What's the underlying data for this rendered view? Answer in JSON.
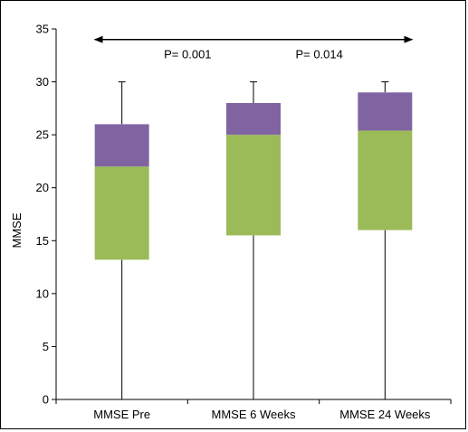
{
  "chart_data": {
    "type": "box",
    "ylabel": "MMSE",
    "ylim": [
      0,
      35
    ],
    "yticks": [
      0,
      5,
      10,
      15,
      20,
      25,
      30,
      35
    ],
    "categories": [
      "MMSE Pre",
      "MMSE 6 Weeks",
      "MMSE 24 Weeks"
    ],
    "boxes": [
      {
        "min": 0,
        "q1": 13.2,
        "median": 22,
        "q3": 26,
        "max": 30
      },
      {
        "min": 0,
        "q1": 15.5,
        "median": 25,
        "q3": 28,
        "max": 30
      },
      {
        "min": 0,
        "q1": 16,
        "median": 25.4,
        "q3": 29,
        "max": 30
      }
    ],
    "lower_box_color": "#9bbb59",
    "upper_box_color": "#8064a2",
    "annotations": {
      "arrow_y": 34,
      "labels": [
        "P= 0.001",
        "P= 0.014"
      ]
    },
    "grid": false,
    "legend": "none"
  }
}
